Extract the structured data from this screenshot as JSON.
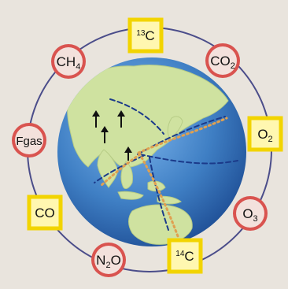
{
  "nodes": [
    {
      "id": "c13",
      "shape": "square",
      "pre": "13",
      "main": "C",
      "sub": ""
    },
    {
      "id": "co2",
      "shape": "circle",
      "pre": "",
      "main": "CO",
      "sub": "2"
    },
    {
      "id": "o2",
      "shape": "square",
      "pre": "",
      "main": "O",
      "sub": "2"
    },
    {
      "id": "o3",
      "shape": "circle",
      "pre": "",
      "main": "O",
      "sub": "3"
    },
    {
      "id": "c14",
      "shape": "square",
      "pre": "14",
      "main": "C",
      "sub": ""
    },
    {
      "id": "n2o",
      "shape": "circle",
      "pre": "",
      "main": "N",
      "sub": "2",
      "tail": "O"
    },
    {
      "id": "co",
      "shape": "square",
      "pre": "",
      "main": "CO",
      "sub": ""
    },
    {
      "id": "fgas",
      "shape": "circle",
      "pre": "",
      "main": "Fgas",
      "sub": ""
    },
    {
      "id": "ch4",
      "shape": "circle",
      "pre": "",
      "main": "CH",
      "sub": "4"
    }
  ],
  "colors": {
    "background": "#e9e4dd",
    "ring": "#4b4d8a",
    "ocean": "#3f7fc4",
    "land": "#cfe2a0",
    "circle_fill": "#d9534f",
    "circle_inner": "#f3e1dc",
    "square_border": "#f2d400",
    "square_fill": "#fff7b0",
    "route_dashed": "#1b3a8a",
    "route_dotted": "#e0a050",
    "arrow": "#111111"
  }
}
